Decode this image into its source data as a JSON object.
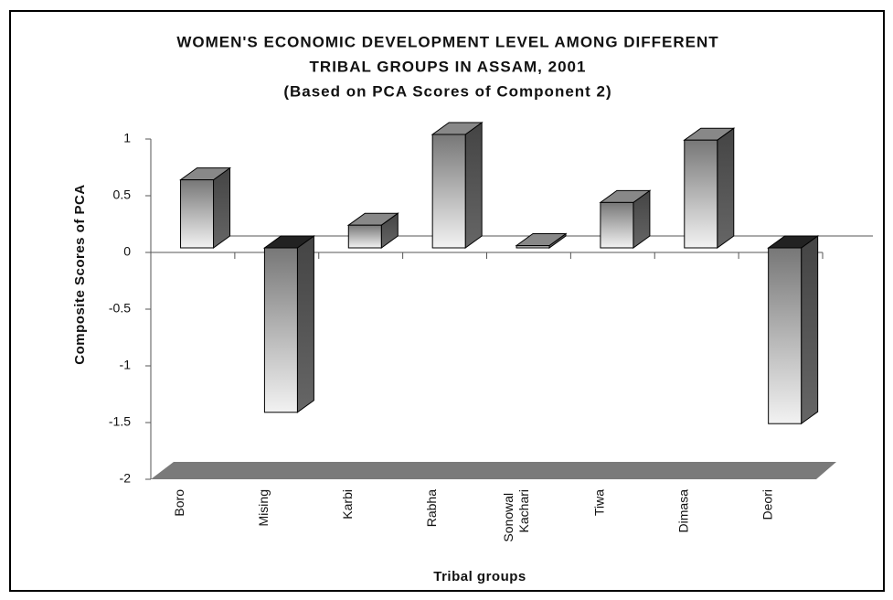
{
  "chart_data": {
    "type": "bar3d",
    "title": "WOMEN'S ECONOMIC DEVELOPMENT LEVEL AMONG DIFFERENT",
    "title_line2": "TRIBAL GROUPS IN ASSAM, 2001",
    "subtitle": "(Based on PCA Scores of Component 2)",
    "xlabel": "Tribal groups",
    "ylabel": "Composite Scores of PCA",
    "categories": [
      "Boro",
      "Mising",
      "Karbi",
      "Rabha",
      "Sonowal Kachari",
      "Tiwa",
      "Dimasa",
      "Deori"
    ],
    "values": [
      0.6,
      -1.45,
      0.2,
      1.0,
      0.02,
      0.4,
      0.95,
      -1.55
    ],
    "ylim": [
      -2,
      1
    ],
    "yticks": [
      1,
      0.5,
      0,
      -0.5,
      -1,
      -1.5,
      -2
    ],
    "color": "#888888"
  }
}
